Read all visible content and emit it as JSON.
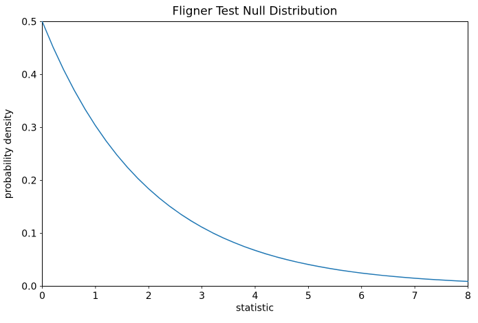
{
  "chart_data": {
    "type": "line",
    "title": "Fligner Test Null Distribution",
    "xlabel": "statistic",
    "ylabel": "probability density",
    "xlim": [
      0,
      8
    ],
    "ylim": [
      0.0,
      0.5
    ],
    "x_ticks": [
      0,
      1,
      2,
      3,
      4,
      5,
      6,
      7,
      8
    ],
    "x_tick_labels": [
      "0",
      "1",
      "2",
      "3",
      "4",
      "5",
      "6",
      "7",
      "8"
    ],
    "y_ticks": [
      0.0,
      0.1,
      0.2,
      0.3,
      0.4,
      0.5
    ],
    "y_tick_labels": [
      "0.0",
      "0.1",
      "0.2",
      "0.3",
      "0.4",
      "0.5"
    ],
    "grid": false,
    "legend": "none",
    "line_color": "#1f77b4",
    "background_color": "#ffffff",
    "series": [
      {
        "x": [
          0.0,
          0.2,
          0.4,
          0.6,
          0.8,
          1.0,
          1.2,
          1.4,
          1.6,
          1.8,
          2.0,
          2.2,
          2.4,
          2.6,
          2.8,
          3.0,
          3.2,
          3.4,
          3.6,
          3.8,
          4.0,
          4.2,
          4.4,
          4.6,
          4.8,
          5.0,
          5.2,
          5.4,
          5.6,
          5.8,
          6.0,
          6.2,
          6.4,
          6.6,
          6.8,
          7.0,
          7.2,
          7.4,
          7.6,
          7.8,
          8.0
        ],
        "y": [
          0.5,
          0.45242,
          0.40937,
          0.37041,
          0.33516,
          0.30327,
          0.27441,
          0.24829,
          0.22466,
          0.20328,
          0.18394,
          0.16644,
          0.1506,
          0.13627,
          0.1233,
          0.11157,
          0.10095,
          0.09134,
          0.08265,
          0.07478,
          0.06767,
          0.06123,
          0.0554,
          0.05013,
          0.04536,
          0.04104,
          0.03714,
          0.0336,
          0.03041,
          0.02751,
          0.02489,
          0.02252,
          0.02038,
          0.01844,
          0.01669,
          0.0151,
          0.01366,
          0.01236,
          0.01119,
          0.01012,
          0.00916
        ]
      }
    ]
  }
}
